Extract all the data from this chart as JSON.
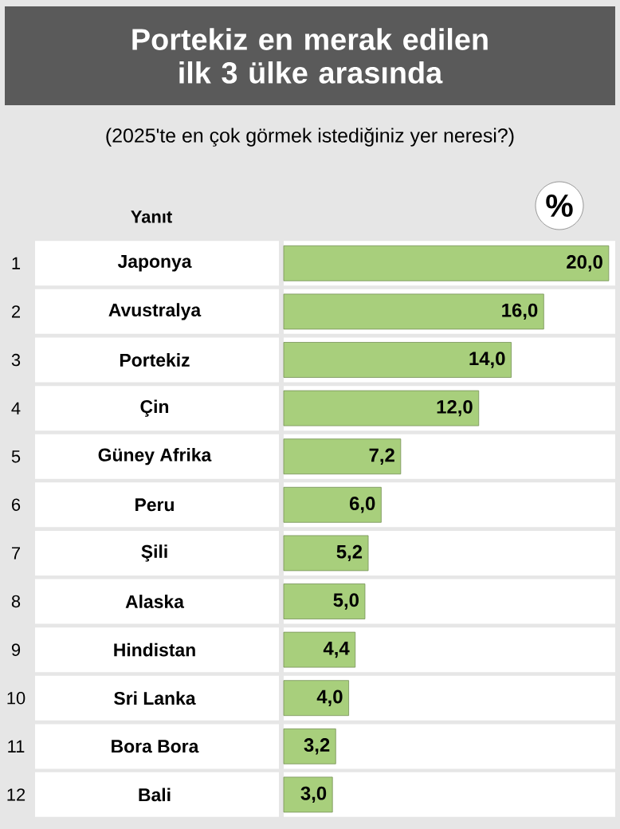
{
  "chart_data": {
    "type": "bar",
    "orientation": "horizontal",
    "title": "Portekiz en merak edilen ilk 3 ülke arasında",
    "subtitle": "(2025'te en çok görmek istediğiniz yer neresi?)",
    "ylabel": "Yanıt",
    "xlabel": "%",
    "categories": [
      "Japonya",
      "Avustralya",
      "Portekiz",
      "Çin",
      "Güney Afrika",
      "Peru",
      "Şili",
      "Alaska",
      "Hindistan",
      "Sri Lanka",
      "Bora Bora",
      "Bali"
    ],
    "values": [
      20.0,
      16.0,
      14.0,
      12.0,
      7.2,
      6.0,
      5.2,
      5.0,
      4.4,
      4.0,
      3.2,
      3.0
    ],
    "value_labels": [
      "20,0",
      "16,0",
      "14,0",
      "12,0",
      "7,2",
      "6,0",
      "5,2",
      "5,0",
      "4,4",
      "4,0",
      "3,2",
      "3,0"
    ],
    "color": "#a8cf7c",
    "annotations": [
      "1",
      "2",
      "3",
      "4",
      "5",
      "6",
      "7",
      "8",
      "9",
      "10",
      "11",
      "12"
    ]
  }
}
